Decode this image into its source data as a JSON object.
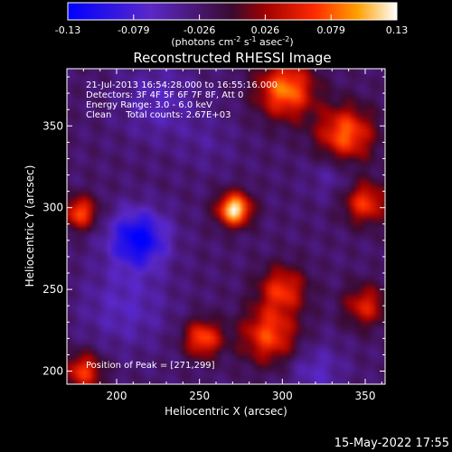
{
  "chart_data": {
    "type": "heatmap",
    "title": "Reconstructed RHESSI Image",
    "xlabel": "Heliocentric X (arcsec)",
    "ylabel": "Heliocentric Y (arcsec)",
    "xlim": [
      170,
      362
    ],
    "ylim": [
      192,
      385
    ],
    "x_ticks": [
      200,
      250,
      300,
      350
    ],
    "y_ticks": [
      200,
      250,
      300,
      350
    ],
    "colorbar": {
      "min": -0.13,
      "max": 0.13,
      "ticks": [
        "-0.13",
        "-0.079",
        "-0.026",
        "0.026",
        "0.079",
        "0.13"
      ],
      "label_prefix": "(photons cm",
      "label_sup1": "-2",
      "label_mid": " s",
      "label_sup2": "-1",
      "label_mid2": " asec",
      "label_sup3": "-2",
      "label_suffix": ")"
    },
    "annotations": [
      "21-Jul-2013 16:54:28.000 to 16:55:16.000",
      "Detectors: 3F 4F 5F 6F 7F 8F, Att 0",
      "Energy Range: 3.0 - 6.0 keV",
      "Clean     Total counts: 2.67E+03"
    ],
    "peak_label": "Position of Peak = [271,299]",
    "peak": [
      271,
      299,
      0.13
    ],
    "negative_peak": [
      213,
      281,
      -0.13
    ],
    "features": [
      {
        "x": 271,
        "y": 299,
        "value": 0.13,
        "width": 7
      },
      {
        "x": 213,
        "y": 281,
        "value": -0.13,
        "width": 12
      },
      {
        "x": 302,
        "y": 372,
        "value": 0.09,
        "width": 12
      },
      {
        "x": 338,
        "y": 345,
        "value": 0.08,
        "width": 12
      },
      {
        "x": 350,
        "y": 303,
        "value": 0.065,
        "width": 9
      },
      {
        "x": 178,
        "y": 297,
        "value": 0.075,
        "width": 7
      },
      {
        "x": 292,
        "y": 222,
        "value": 0.07,
        "width": 12
      },
      {
        "x": 252,
        "y": 220,
        "value": 0.075,
        "width": 8
      },
      {
        "x": 300,
        "y": 250,
        "value": 0.06,
        "width": 10
      },
      {
        "x": 180,
        "y": 200,
        "value": 0.065,
        "width": 8
      },
      {
        "x": 225,
        "y": 365,
        "value": -0.06,
        "width": 16
      },
      {
        "x": 205,
        "y": 240,
        "value": -0.06,
        "width": 18
      },
      {
        "x": 320,
        "y": 200,
        "value": -0.06,
        "width": 12
      },
      {
        "x": 330,
        "y": 320,
        "value": -0.05,
        "width": 10
      },
      {
        "x": 350,
        "y": 240,
        "value": 0.05,
        "width": 9
      },
      {
        "x": 255,
        "y": 340,
        "value": -0.04,
        "width": 12
      }
    ],
    "background": -0.025
  },
  "date_stamp": "15-May-2022 17:55"
}
